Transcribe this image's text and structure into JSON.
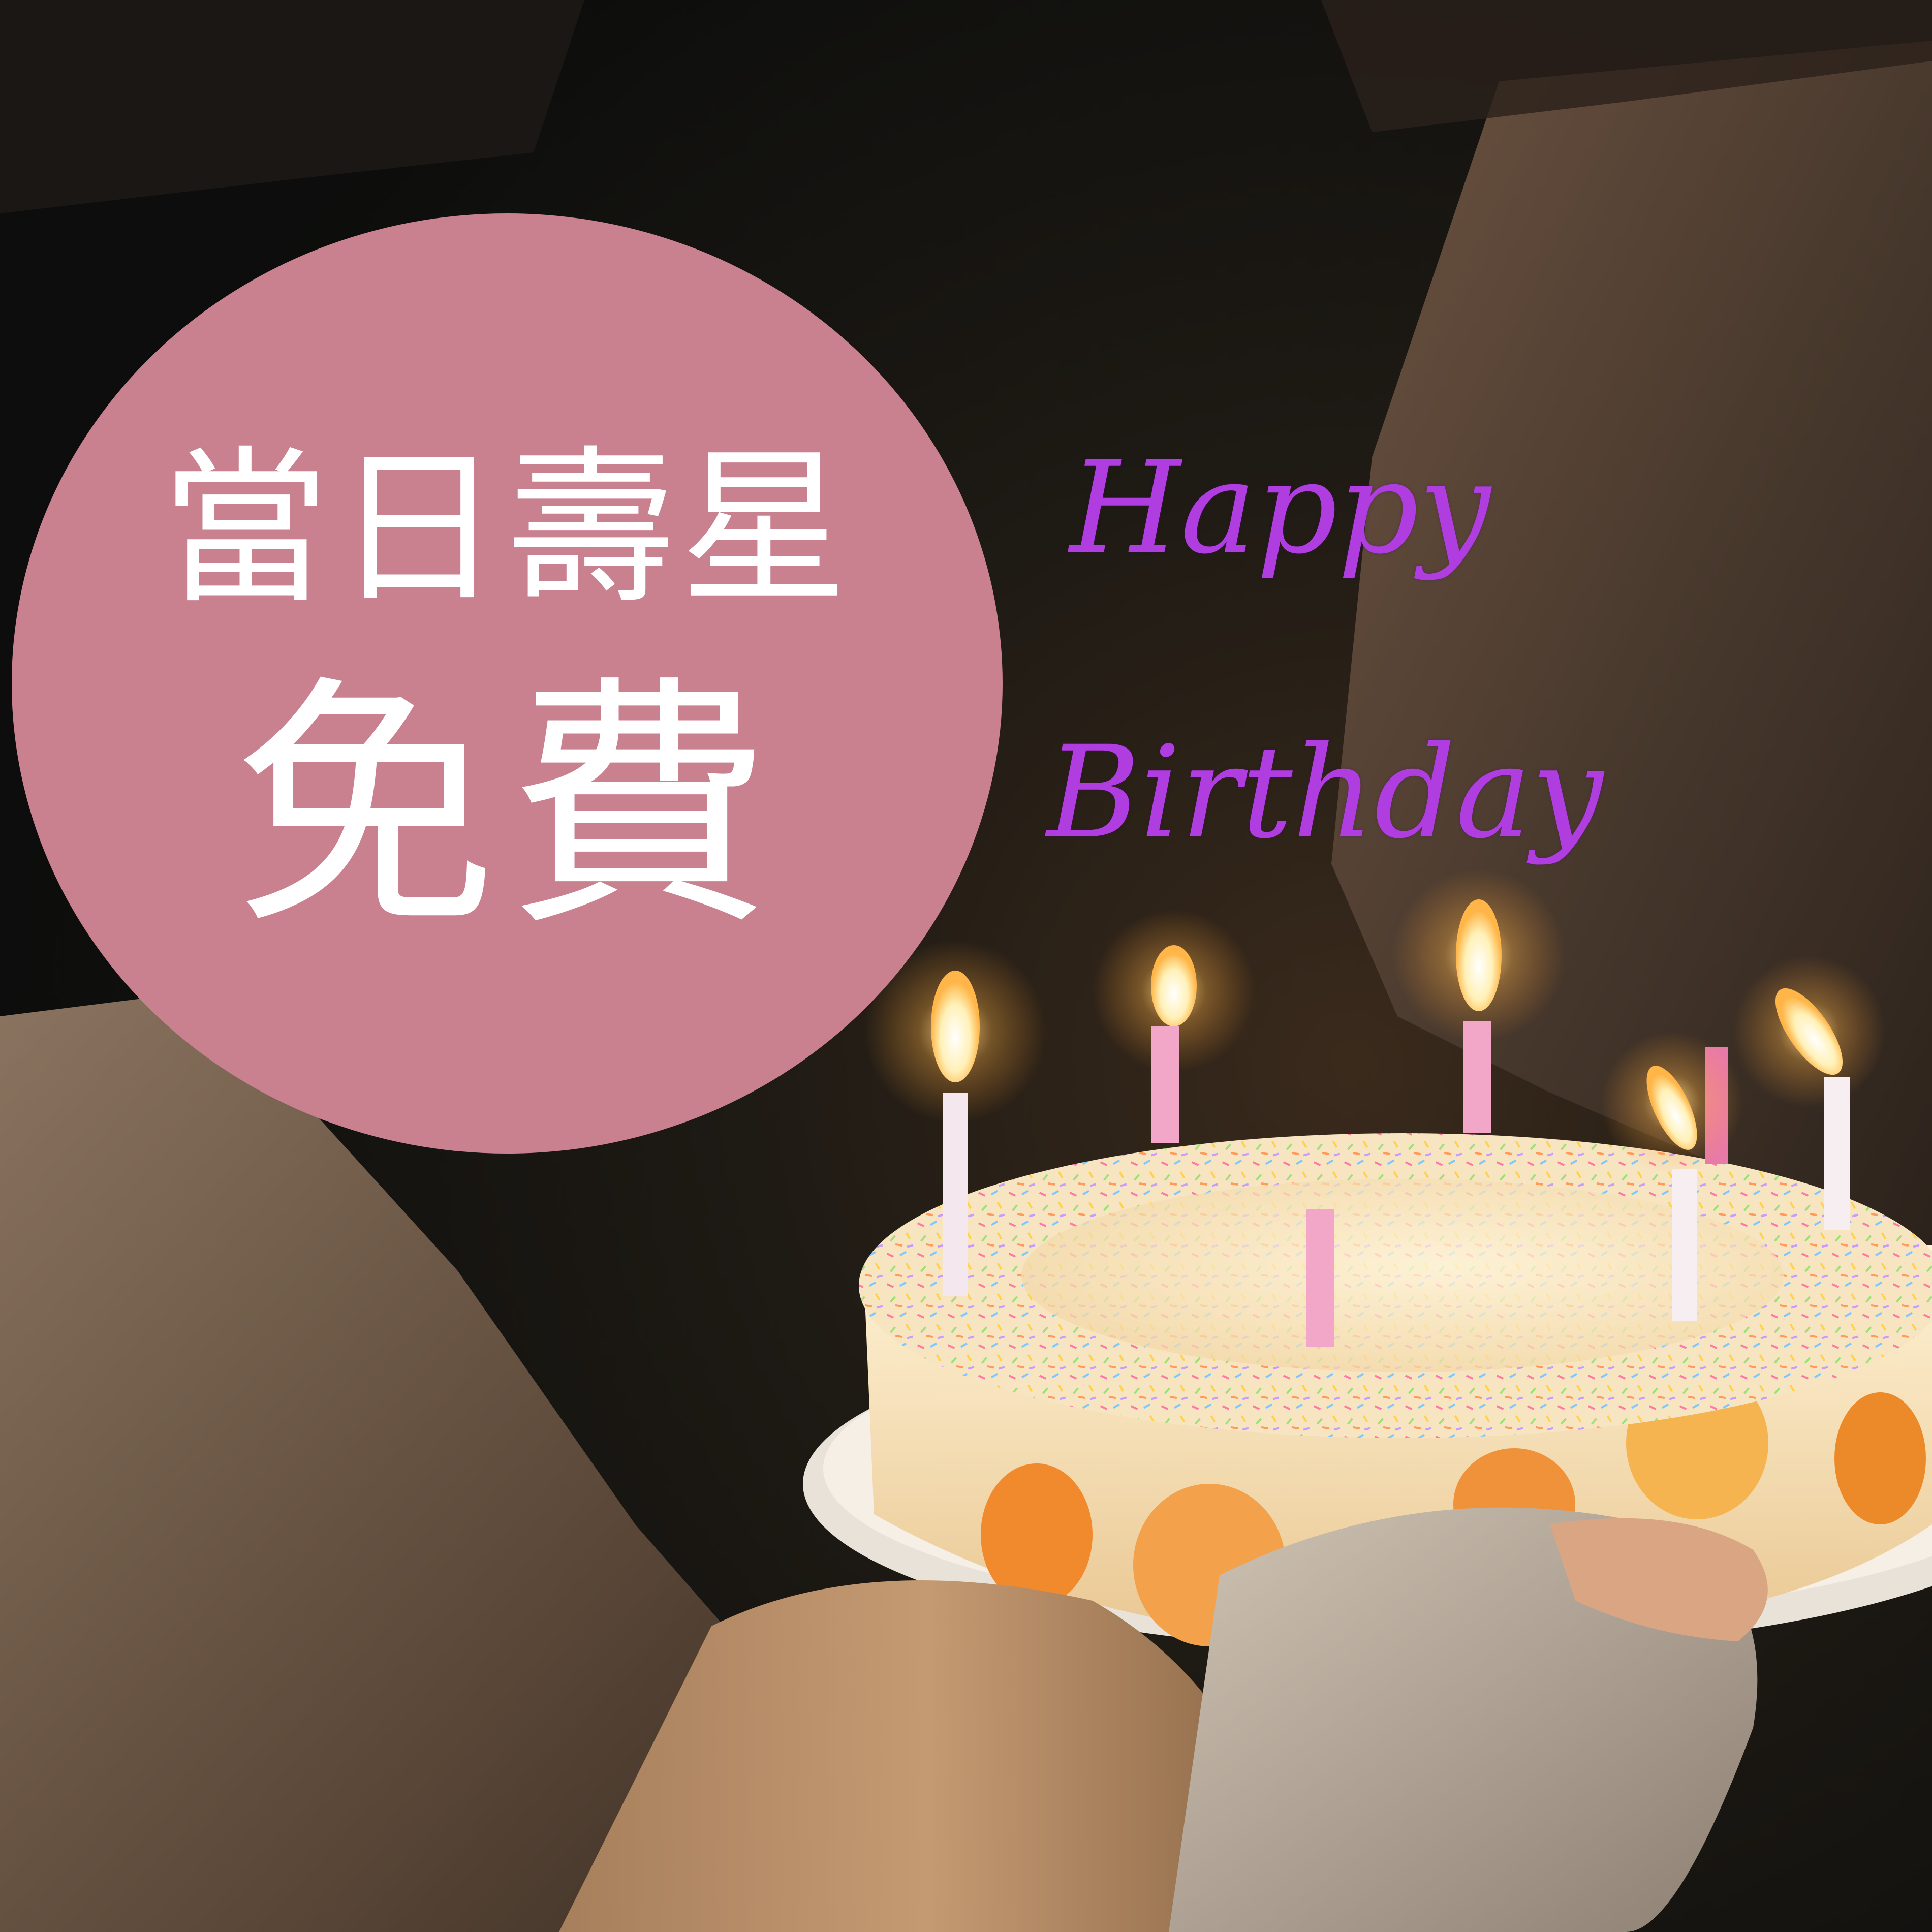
{
  "badge": {
    "line1": "當日壽星",
    "line2": "免費",
    "color": "#c98190"
  },
  "greeting": {
    "line1": "Happy",
    "line2": "Birthday",
    "color": "#b03de0"
  }
}
